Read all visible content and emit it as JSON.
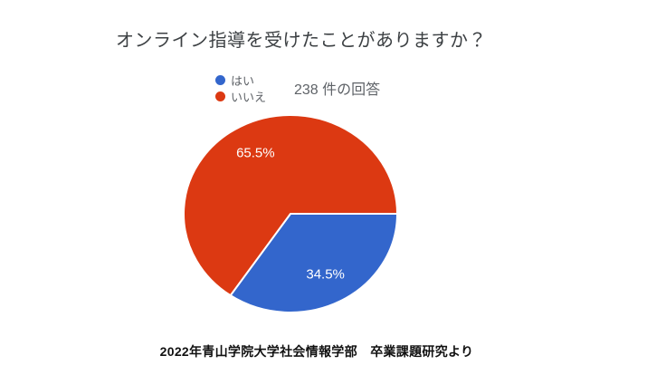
{
  "page": {
    "background": "#ffffff"
  },
  "header": {
    "title": "オンライン指導を受けたことがありますか？",
    "response_count": "238 件の回答"
  },
  "legend": {
    "position": "top-left",
    "items": [
      {
        "label": "はい",
        "color": "#3366CC"
      },
      {
        "label": "いいえ",
        "color": "#DC3912"
      }
    ]
  },
  "chart_data": {
    "type": "pie",
    "title": "オンライン指導を受けたことがありますか？",
    "annotation": "238 件の回答",
    "categories": [
      "はい",
      "いいえ"
    ],
    "values": [
      34.5,
      65.5
    ],
    "value_labels": [
      "34.5%",
      "65.5%"
    ],
    "colors": [
      "#3366CC",
      "#DC3912"
    ],
    "units": "percent",
    "total_responses": 238,
    "legend_position": "top-left",
    "start_angle_deg": 0,
    "direction": "clockwise",
    "slice_label_color": "#ffffff",
    "slice_separator_color": "#ffffff"
  },
  "footer": {
    "source": "2022年青山学院大学社会情報学部　卒業課題研究より"
  }
}
